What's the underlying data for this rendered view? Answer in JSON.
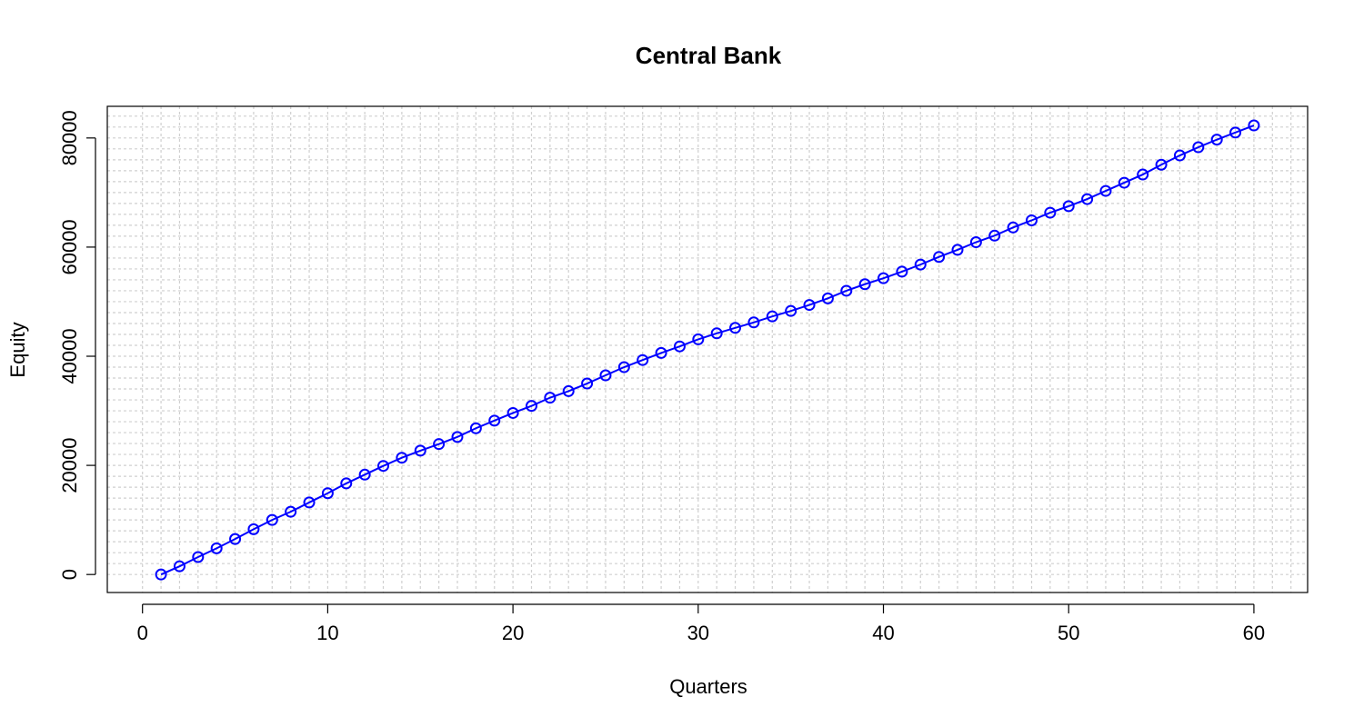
{
  "chart_data": {
    "type": "line",
    "title": "Central Bank",
    "xlabel": "Quarters",
    "ylabel": "Equity",
    "xlim": [
      -1.9,
      62.9
    ],
    "ylim": [
      -3300,
      85800
    ],
    "grid": true,
    "x_ticks": [
      0,
      10,
      20,
      30,
      40,
      50,
      60
    ],
    "y_ticks": [
      0,
      20000,
      40000,
      60000,
      80000
    ],
    "x_ticks_text": [
      "0",
      "10",
      "20",
      "30",
      "40",
      "50",
      "60"
    ],
    "y_ticks_text": [
      "0",
      "20000",
      "40000",
      "60000",
      "80000"
    ],
    "series": [
      {
        "color": "#0000ff",
        "marker": "open-circle",
        "x": [
          1,
          2,
          3,
          4,
          5,
          6,
          7,
          8,
          9,
          10,
          11,
          12,
          13,
          14,
          15,
          16,
          17,
          18,
          19,
          20,
          21,
          22,
          23,
          24,
          25,
          26,
          27,
          28,
          29,
          30,
          31,
          32,
          33,
          34,
          35,
          36,
          37,
          38,
          39,
          40,
          41,
          42,
          43,
          44,
          45,
          46,
          47,
          48,
          49,
          50,
          51,
          52,
          53,
          54,
          55,
          56,
          57,
          58,
          59,
          60
        ],
        "values": [
          0,
          1500,
          3200,
          4800,
          6500,
          8300,
          10000,
          11500,
          13200,
          14900,
          16700,
          18300,
          19900,
          21400,
          22700,
          23900,
          25200,
          26800,
          28200,
          29600,
          30900,
          32400,
          33600,
          35000,
          36500,
          38000,
          39300,
          40600,
          41800,
          43100,
          44200,
          45200,
          46200,
          47300,
          48300,
          49400,
          50600,
          52000,
          53200,
          54300,
          55500,
          56800,
          58200,
          59500,
          60900,
          62100,
          63600,
          64900,
          66300,
          67500,
          68800,
          70300,
          71800,
          73300,
          75100,
          76800,
          78300,
          79700,
          81000,
          82300
        ]
      }
    ]
  }
}
